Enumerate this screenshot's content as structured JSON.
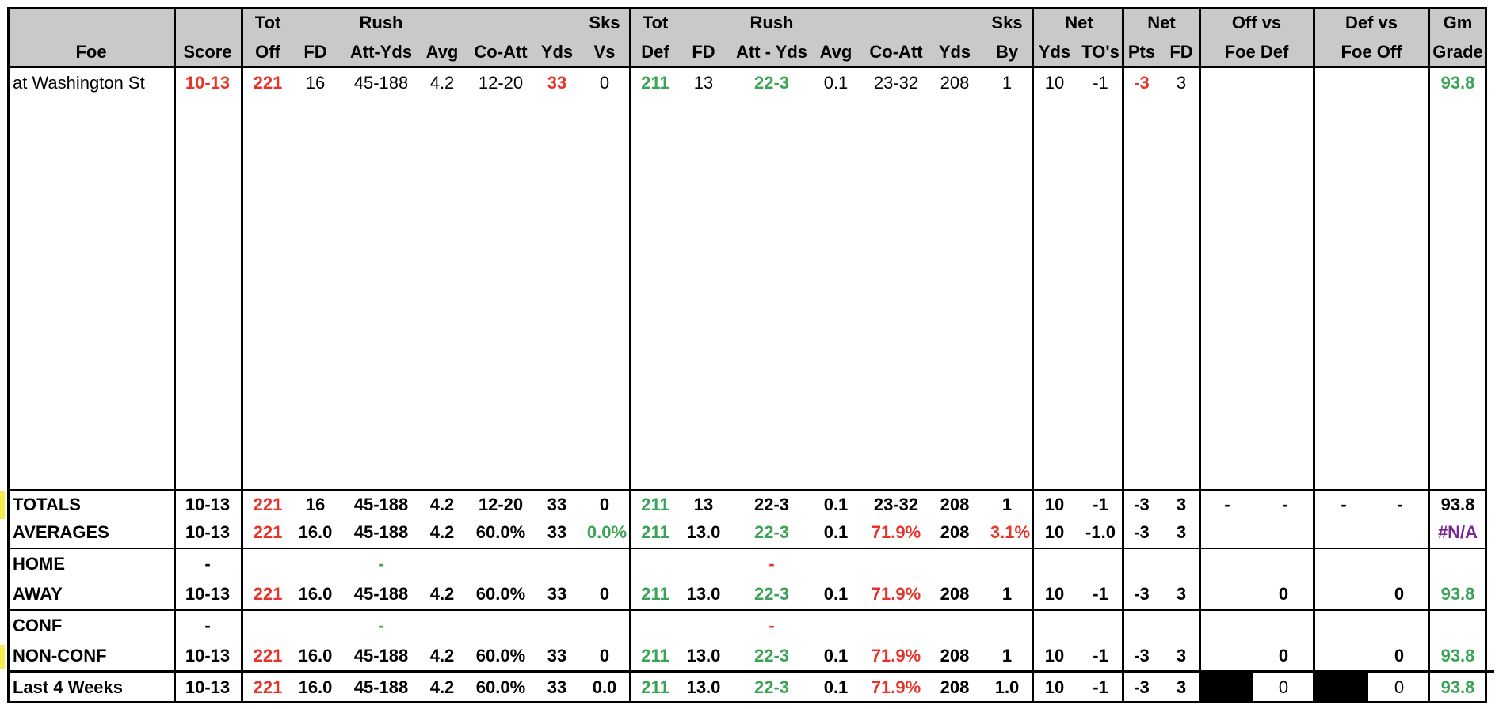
{
  "header": {
    "foe": "Foe",
    "score": "Score",
    "tot_off_1": "Tot",
    "tot_off_2": "Off",
    "fd": "FD",
    "rush_1": "Rush",
    "rush_2": "Att-Yds",
    "avg": "Avg",
    "co_att": "Co-Att",
    "yds": "Yds",
    "sks_vs_1": "Sks",
    "sks_vs_2": "Vs",
    "tot_def_1": "Tot",
    "tot_def_2": "Def",
    "fd_def": "FD",
    "rush_def_1": "Rush",
    "rush_def_2": "Att - Yds",
    "avg_def": "Avg",
    "co_att_def": "Co-Att",
    "yds_def": "Yds",
    "sks_by_1": "Sks",
    "sks_by_2": "By",
    "net_1": "Net",
    "net_yds": "Yds",
    "net_to": "TO's",
    "net_pts_1": "Net",
    "net_pts": "Pts",
    "net_fd": "FD",
    "off_vs_1": "Off vs",
    "off_vs_2": "Foe Def",
    "def_vs_1": "Def vs",
    "def_vs_2": "Foe Off",
    "gm_1": "Gm",
    "gm_2": "Grade"
  },
  "game": {
    "foe": "at Washington St",
    "score": "10-13",
    "tot_off": "221",
    "fd": "16",
    "rush": "45-188",
    "avg": "4.2",
    "co_att": "12-20",
    "yds": "33",
    "sks_vs": "0",
    "tot_def": "211",
    "fd_def": "13",
    "rush_def": "22-3",
    "avg_def": "0.1",
    "co_att_def": "23-32",
    "yds_def": "208",
    "sks_by": "1",
    "net_yds": "10",
    "net_to": "-1",
    "net_pts": "-3",
    "net_fd": "3",
    "grade": "93.8"
  },
  "totals": {
    "label": "TOTALS",
    "score": "10-13",
    "tot_off": "221",
    "fd": "16",
    "rush": "45-188",
    "avg": "4.2",
    "co_att": "12-20",
    "yds": "33",
    "sks_vs": "0",
    "tot_def": "211",
    "fd_def": "13",
    "rush_def": "22-3",
    "avg_def": "0.1",
    "co_att_def": "23-32",
    "yds_def": "208",
    "sks_by": "1",
    "net_yds": "10",
    "net_to": "-1",
    "net_pts": "-3",
    "net_fd": "3",
    "off1": "-",
    "off2": "-",
    "def1": "-",
    "def2": "-",
    "grade": "93.8"
  },
  "averages": {
    "label": "AVERAGES",
    "score": "10-13",
    "tot_off": "221",
    "fd": "16.0",
    "rush": "45-188",
    "avg": "4.2",
    "co_att": "60.0%",
    "yds": "33",
    "sks_vs": "0.0%",
    "tot_def": "211",
    "fd_def": "13.0",
    "rush_def": "22-3",
    "avg_def": "0.1",
    "co_att_def": "71.9%",
    "yds_def": "208",
    "sks_by": "3.1%",
    "net_yds": "10",
    "net_to": "-1.0",
    "net_pts": "-3",
    "net_fd": "3",
    "grade": "#N/A"
  },
  "home": {
    "label": "HOME",
    "score": "-",
    "rush": "-",
    "rush_def": "-"
  },
  "away": {
    "label": "AWAY",
    "score": "10-13",
    "tot_off": "221",
    "fd": "16.0",
    "rush": "45-188",
    "avg": "4.2",
    "co_att": "60.0%",
    "yds": "33",
    "sks_vs": "0",
    "tot_def": "211",
    "fd_def": "13.0",
    "rush_def": "22-3",
    "avg_def": "0.1",
    "co_att_def": "71.9%",
    "yds_def": "208",
    "sks_by": "1",
    "net_yds": "10",
    "net_to": "-1",
    "net_pts": "-3",
    "net_fd": "3",
    "off_vs": "0",
    "def_vs": "0",
    "grade": "93.8"
  },
  "conf": {
    "label": "CONF",
    "score": "-",
    "rush": "-",
    "rush_def": "-"
  },
  "nonconf": {
    "label": "NON-CONF",
    "score": "10-13",
    "tot_off": "221",
    "fd": "16.0",
    "rush": "45-188",
    "avg": "4.2",
    "co_att": "60.0%",
    "yds": "33",
    "sks_vs": "0",
    "tot_def": "211",
    "fd_def": "13.0",
    "rush_def": "22-3",
    "avg_def": "0.1",
    "co_att_def": "71.9%",
    "yds_def": "208",
    "sks_by": "1",
    "net_yds": "10",
    "net_to": "-1",
    "net_pts": "-3",
    "net_fd": "3",
    "off_vs": "0",
    "def_vs": "0",
    "grade": "93.8"
  },
  "last4": {
    "label": "Last 4 Weeks",
    "score": "10-13",
    "tot_off": "221",
    "fd": "16.0",
    "rush": "45-188",
    "avg": "4.2",
    "co_att": "60.0%",
    "yds": "33",
    "sks_vs": "0.0",
    "tot_def": "211",
    "fd_def": "13.0",
    "rush_def": "22-3",
    "avg_def": "0.1",
    "co_att_def": "71.9%",
    "yds_def": "208",
    "sks_by": "1.0",
    "net_yds": "10",
    "net_to": "-1",
    "net_pts": "-3",
    "net_fd": "3",
    "off_vs": "0",
    "def_vs": "0",
    "grade": "93.8"
  },
  "colors": {
    "header_bg": "#c9c9c9",
    "red": "#e8332a",
    "green": "#3aa356",
    "purple": "#7a2890",
    "yellow_marker": "#f7ec4f"
  }
}
